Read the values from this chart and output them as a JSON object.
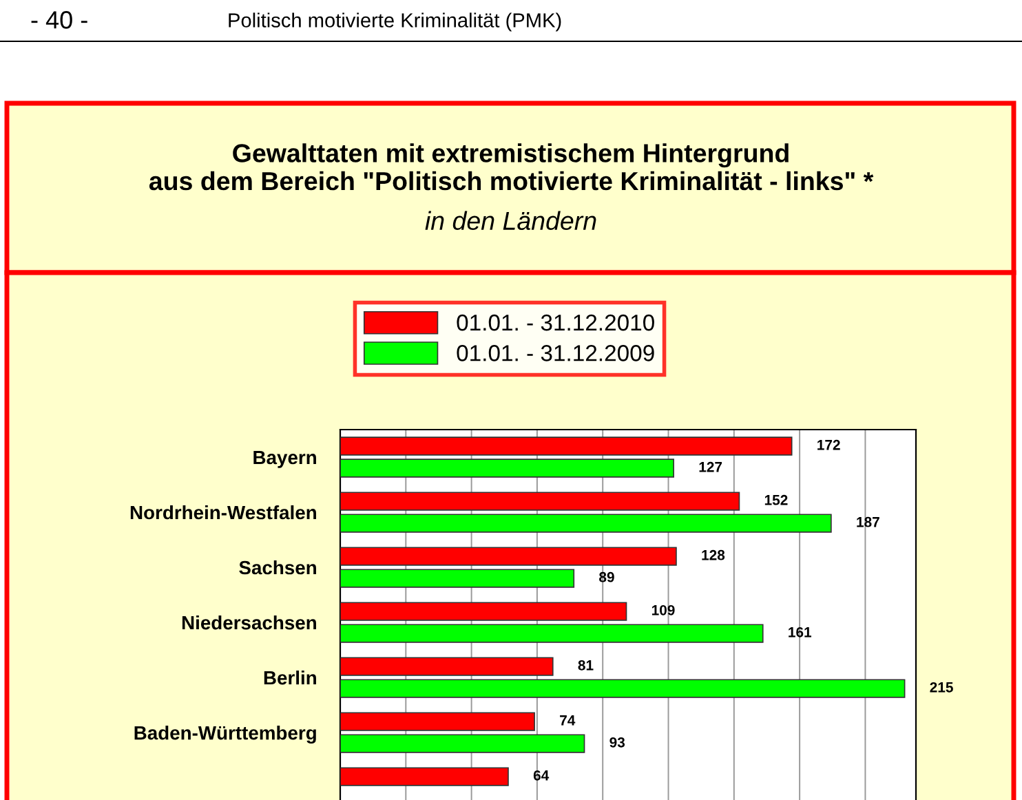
{
  "chart_data": {
    "type": "bar",
    "orientation": "horizontal",
    "title": "Gewalttaten mit extremistischem Hintergrund\naus dem Bereich \"Politisch motivierte Kriminalität - links\" *",
    "subtitle": "in den Ländern",
    "annotations": [
      "- 40 -",
      "Politisch motivierte Kriminalität (PMK)"
    ],
    "categories": [
      "Bayern",
      "Nordrhein-Westfalen",
      "Sachsen",
      "Niedersachsen",
      "Berlin",
      "Baden-Württemberg",
      null
    ],
    "series": [
      {
        "name": "01.01. - 31.12.2010",
        "color": "#ff0000",
        "values": [
          172,
          152,
          128,
          109,
          81,
          74,
          64
        ]
      },
      {
        "name": "01.01. - 31.12.2009",
        "color": "#00ff00",
        "values": [
          127,
          187,
          89,
          161,
          215,
          93,
          null
        ]
      }
    ],
    "data_labels": true,
    "grid": "x",
    "legend": "top",
    "tick_labels": "y"
  }
}
